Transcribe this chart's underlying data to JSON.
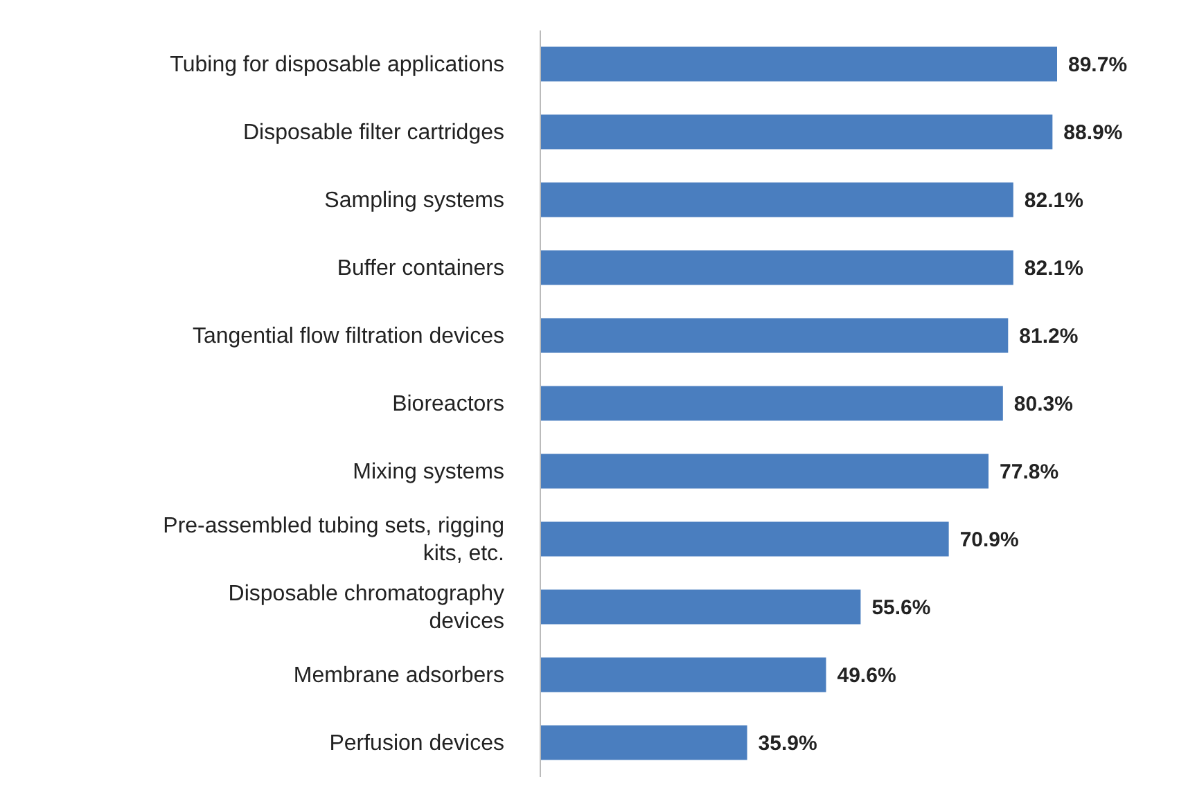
{
  "chart_data": {
    "type": "bar",
    "orientation": "horizontal",
    "categories": [
      "Tubing for disposable applications",
      "Disposable filter cartridges",
      "Sampling systems",
      "Buffer containers",
      "Tangential flow filtration devices",
      "Bioreactors",
      "Mixing systems",
      "Pre-assembled tubing sets, rigging kits, etc.",
      "Disposable chromatography devices",
      "Membrane adsorbers",
      "Perfusion devices"
    ],
    "values": [
      89.7,
      88.9,
      82.1,
      82.1,
      81.2,
      80.3,
      77.8,
      70.9,
      55.6,
      49.6,
      35.9
    ],
    "value_labels": [
      "89.7%",
      "88.9%",
      "82.1%",
      "82.1%",
      "81.2%",
      "80.3%",
      "77.8%",
      "70.9%",
      "55.6%",
      "49.6%",
      "35.9%"
    ],
    "color": "#4a7ebf",
    "grid": false,
    "legend": false
  }
}
